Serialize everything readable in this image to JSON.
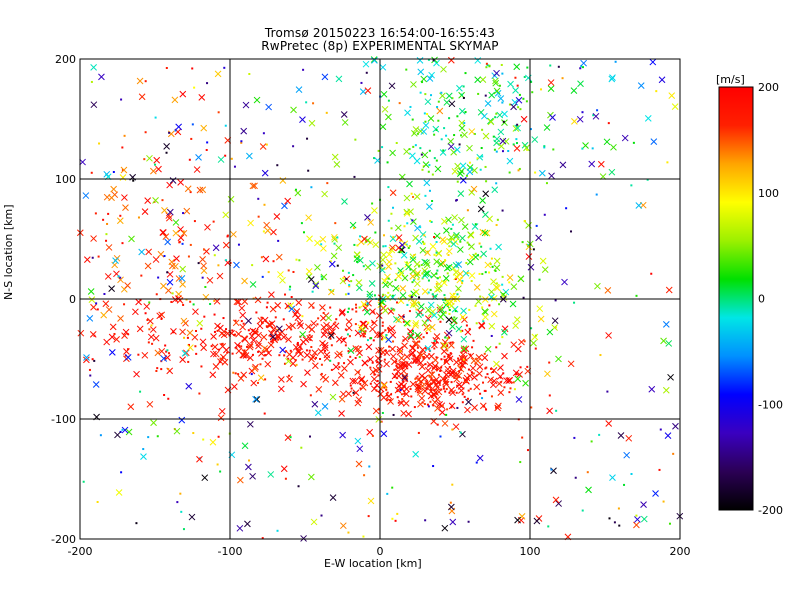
{
  "chart_data": {
    "type": "scatter",
    "title": "Tromsø 20150223 16:54:00-16:55:43",
    "subtitle": "RwPretec (8p) EXPERIMENTAL SKYMAP",
    "xlabel": "E-W location [km]",
    "ylabel": "N-S location [km]",
    "xlim": [
      -200,
      200
    ],
    "ylim": [
      -200,
      200
    ],
    "x_ticks": [
      "-200",
      "-100",
      "0",
      "100",
      "200"
    ],
    "y_ticks": [
      "-200",
      "-100",
      "0",
      "100",
      "200"
    ],
    "grid": true,
    "colorbar": {
      "label": "[m/s]",
      "range": [
        -200,
        200
      ],
      "ticks": [
        "200",
        "100",
        "0",
        "-100",
        "-200"
      ],
      "colormap": [
        "#000000",
        "#2b0055",
        "#3a00c0",
        "#0000ff",
        "#0090ff",
        "#00e6e6",
        "#00e000",
        "#9cf000",
        "#ffff00",
        "#ffa500",
        "#ff2000",
        "#ff0000"
      ]
    },
    "markers": [
      "cross",
      "dot"
    ],
    "clusters": [
      {
        "name": "",
        "cx": -60,
        "cy": -35,
        "sx": 60,
        "sy": 18,
        "n": 420,
        "vmin": 160,
        "vmax": 200
      },
      {
        "name": "",
        "cx": 35,
        "cy": -65,
        "sx": 30,
        "sy": 16,
        "n": 360,
        "vmin": 150,
        "vmax": 200
      },
      {
        "name": "",
        "cx": 30,
        "cy": 20,
        "sx": 35,
        "sy": 30,
        "n": 420,
        "vmin": -20,
        "vmax": 120
      },
      {
        "name": "",
        "cx": 55,
        "cy": 150,
        "sx": 40,
        "sy": 35,
        "n": 220,
        "vmin": -40,
        "vmax": 60
      },
      {
        "name": "",
        "cx": -140,
        "cy": 50,
        "sx": 40,
        "sy": 50,
        "n": 160,
        "vmin": 120,
        "vmax": 200
      },
      {
        "name": "",
        "cx": 0,
        "cy": 0,
        "sx": 130,
        "sy": 120,
        "n": 520,
        "vmin": -200,
        "vmax": 200
      }
    ]
  }
}
